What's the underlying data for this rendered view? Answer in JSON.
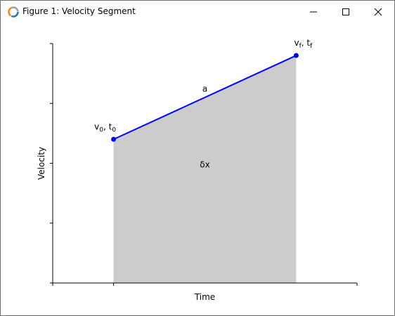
{
  "window": {
    "title": "Figure 1: Velocity Segment"
  },
  "icons": {
    "app": "matplotlib-logo-icon",
    "minimize": "minimize-icon",
    "maximize": "maximize-icon",
    "close": "close-icon"
  },
  "chart_data": {
    "type": "area",
    "xlabel": "Time",
    "ylabel": "Velocity",
    "x_ticks_labeled": false,
    "y_ticks_labeled": false,
    "xlim": [
      0,
      1
    ],
    "ylim": [
      0,
      1
    ],
    "points": [
      {
        "x": 0.2,
        "y": 0.6,
        "label_main": "v",
        "label_sub": "0",
        "label_sep": ", t",
        "label_sub2": "0"
      },
      {
        "x": 0.8,
        "y": 0.95,
        "label_main": "v",
        "label_sub": "f",
        "label_sep": ", t",
        "label_sub2": "f"
      }
    ],
    "segment_label": "a",
    "area_label": "δx",
    "colors": {
      "line": "#0000ff",
      "area": "#cccccc",
      "axis": "#000000"
    }
  }
}
